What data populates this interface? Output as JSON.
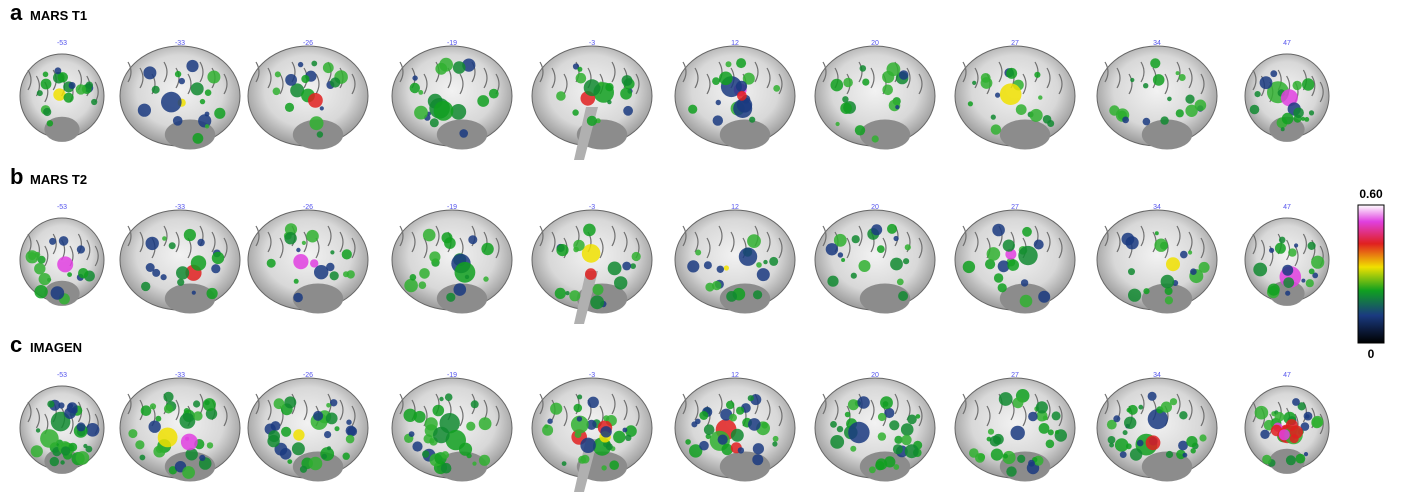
{
  "panels": [
    {
      "letter": "a",
      "title": "MARS T1",
      "slices": [
        -53,
        -33,
        -26,
        -19,
        -3,
        12,
        20,
        27,
        34,
        47
      ]
    },
    {
      "letter": "b",
      "title": "MARS T2",
      "slices": [
        -53,
        -33,
        -26,
        -19,
        -3,
        12,
        20,
        27,
        34,
        47
      ]
    },
    {
      "letter": "c",
      "title": "IMAGEN",
      "slices": [
        -53,
        -33,
        -26,
        -19,
        -3,
        12,
        20,
        27,
        34,
        47
      ]
    }
  ],
  "colorbar": {
    "max": "0.60",
    "min": "0"
  }
}
